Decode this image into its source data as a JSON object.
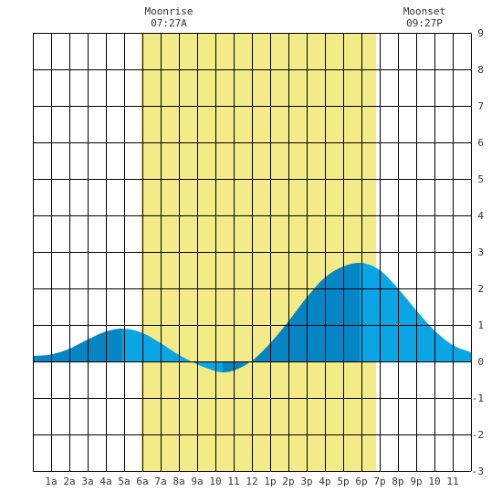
{
  "moon": {
    "rise_title": "Moonrise",
    "rise_time": "07:27A",
    "rise_hour": 7.45,
    "set_title": "Moonset",
    "set_time": "09:27P",
    "set_hour": 21.45
  },
  "chart_data": {
    "type": "area",
    "title": "",
    "xlabel": "",
    "ylabel": "",
    "xlim": [
      0,
      24
    ],
    "ylim": [
      -3,
      9
    ],
    "grid": true,
    "y_ticks": [
      "-3",
      "-2",
      "-1",
      "0",
      "1",
      "2",
      "3",
      "4",
      "5",
      "6",
      "7",
      "8",
      "9"
    ],
    "x_tick_labels": [
      "1a",
      "2a",
      "3a",
      "4a",
      "5a",
      "6a",
      "7a",
      "8a",
      "9a",
      "10",
      "11",
      "12",
      "1p",
      "2p",
      "3p",
      "4p",
      "5p",
      "6p",
      "7p",
      "8p",
      "9p",
      "10",
      "11"
    ],
    "highlight": {
      "from_hour": 5.9,
      "to_hour": 18.8,
      "label": "daylight"
    },
    "extrema": [
      {
        "hour": 4.9,
        "value": 0.9,
        "kind": "high"
      },
      {
        "hour": 10.4,
        "value": -0.3,
        "kind": "low"
      },
      {
        "hour": 17.9,
        "value": 2.7,
        "kind": "high"
      }
    ],
    "series": [
      {
        "values": [
          {
            "hour": 0,
            "value": 0.15
          },
          {
            "hour": 1,
            "value": 0.19
          },
          {
            "hour": 2,
            "value": 0.35
          },
          {
            "hour": 3,
            "value": 0.6
          },
          {
            "hour": 4,
            "value": 0.82
          },
          {
            "hour": 4.9,
            "value": 0.9
          },
          {
            "hour": 6,
            "value": 0.78
          },
          {
            "hour": 7,
            "value": 0.5
          },
          {
            "hour": 8,
            "value": 0.18
          },
          {
            "hour": 9,
            "value": -0.08
          },
          {
            "hour": 10,
            "value": -0.26
          },
          {
            "hour": 10.4,
            "value": -0.3
          },
          {
            "hour": 11,
            "value": -0.25
          },
          {
            "hour": 12,
            "value": 0.02
          },
          {
            "hour": 13,
            "value": 0.5
          },
          {
            "hour": 14,
            "value": 1.1
          },
          {
            "hour": 15,
            "value": 1.75
          },
          {
            "hour": 16,
            "value": 2.3
          },
          {
            "hour": 17,
            "value": 2.6
          },
          {
            "hour": 17.9,
            "value": 2.7
          },
          {
            "hour": 19,
            "value": 2.5
          },
          {
            "hour": 20,
            "value": 2.0
          },
          {
            "hour": 21,
            "value": 1.4
          },
          {
            "hour": 22,
            "value": 0.85
          },
          {
            "hour": 23,
            "value": 0.45
          },
          {
            "hour": 24,
            "value": 0.25
          }
        ]
      }
    ]
  },
  "colors": {
    "background": "#ffffff",
    "daylight": "#f2eb88",
    "grid": "#000000",
    "tide_dark": "#0585c4",
    "tide_light": "#0aa5e4",
    "text": "#333333"
  }
}
